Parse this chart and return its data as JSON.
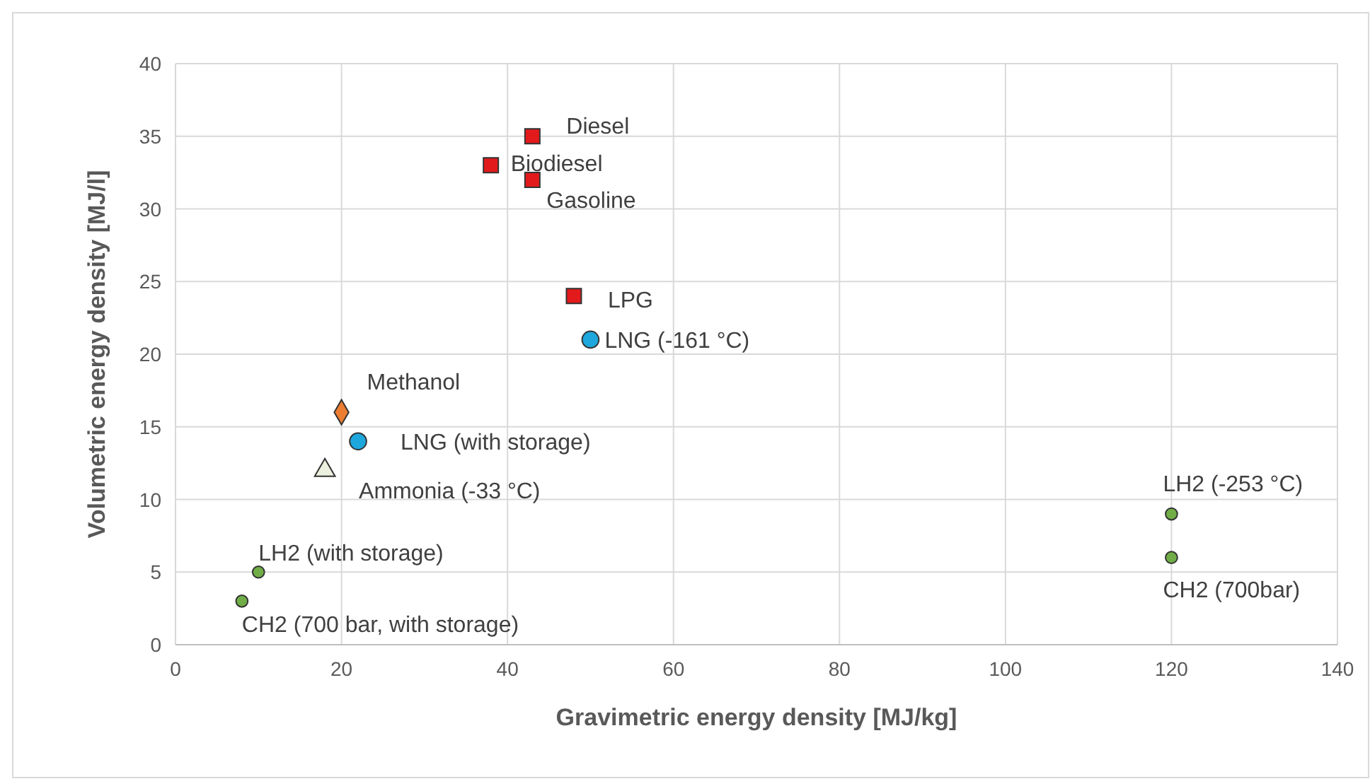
{
  "chart_data": {
    "type": "scatter",
    "xlabel": "Gravimetric energy density [MJ/kg]",
    "ylabel": "Volumetric energy density [MJ/l]",
    "xlim": [
      0,
      140
    ],
    "ylim": [
      0,
      40
    ],
    "xticks": [
      0,
      20,
      40,
      60,
      80,
      100,
      120,
      140
    ],
    "yticks": [
      0,
      5,
      10,
      15,
      20,
      25,
      30,
      35,
      40
    ],
    "grid": true,
    "series": [
      {
        "name": "Diesel",
        "color": "#e31a1c",
        "marker": "square",
        "x": [
          43
        ],
        "values": [
          35
        ]
      },
      {
        "name": "Biodiesel",
        "color": "#e31a1c",
        "marker": "square",
        "x": [
          38
        ],
        "values": [
          33
        ]
      },
      {
        "name": "Gasoline",
        "color": "#e31a1c",
        "marker": "square",
        "x": [
          43
        ],
        "values": [
          32
        ]
      },
      {
        "name": "LPG",
        "color": "#e31a1c",
        "marker": "square",
        "x": [
          48
        ],
        "values": [
          24
        ]
      },
      {
        "name": "LNG (-161 °C)",
        "color": "#1ea7dd",
        "marker": "circle",
        "x": [
          50
        ],
        "values": [
          21
        ]
      },
      {
        "name": "Methanol",
        "color": "#ed7d31",
        "marker": "diamond",
        "x": [
          20
        ],
        "values": [
          16
        ]
      },
      {
        "name": "LNG (with storage)",
        "color": "#1ea7dd",
        "marker": "circle",
        "x": [
          22
        ],
        "values": [
          14
        ]
      },
      {
        "name": "Ammonia (-33 °C)",
        "color": "#ebf1de",
        "marker": "triangle",
        "x": [
          18
        ],
        "values": [
          12
        ]
      },
      {
        "name": "LH2 (with storage)",
        "color": "#70ad47",
        "marker": "circle",
        "x": [
          10
        ],
        "values": [
          5
        ]
      },
      {
        "name": "CH2 (700 bar, with storage)",
        "color": "#70ad47",
        "marker": "circle",
        "x": [
          8
        ],
        "values": [
          3
        ]
      },
      {
        "name": "LH2 (-253 °C)",
        "color": "#70ad47",
        "marker": "circle",
        "x": [
          120
        ],
        "values": [
          9
        ]
      },
      {
        "name": "CH2 (700bar)",
        "color": "#70ad47",
        "marker": "circle",
        "x": [
          120
        ],
        "values": [
          6
        ]
      }
    ]
  }
}
